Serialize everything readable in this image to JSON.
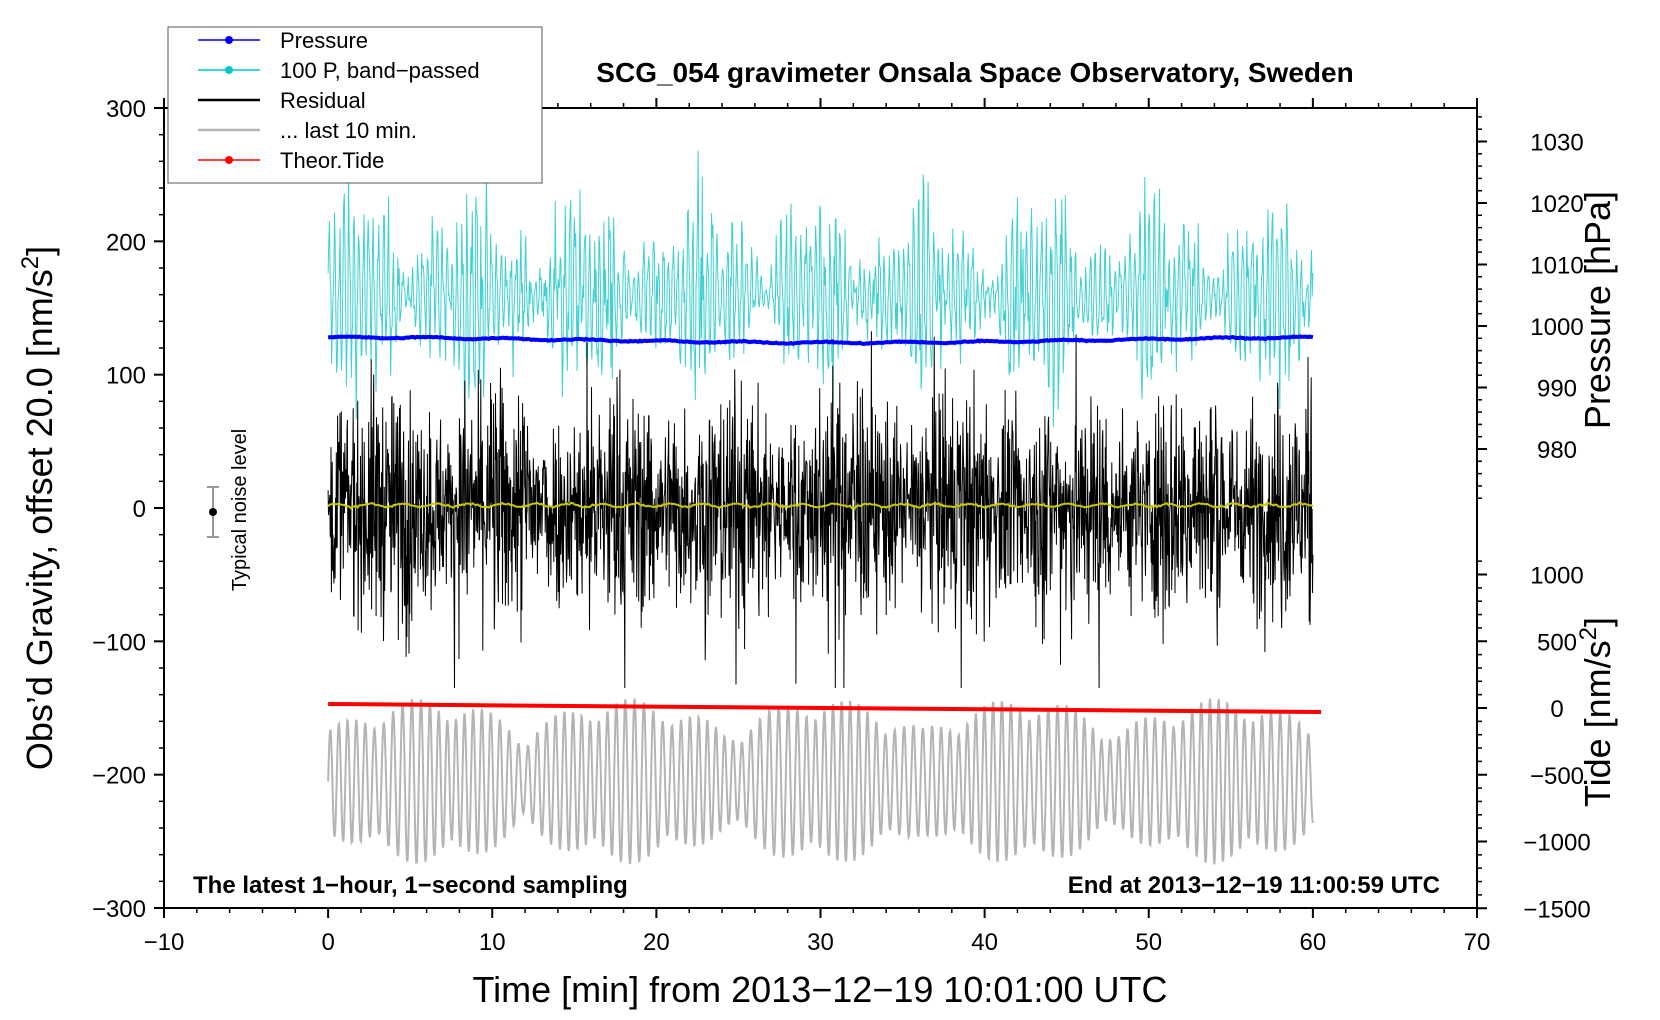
{
  "chart_data": {
    "type": "line",
    "title": "SCG_054 gravimeter Onsala Space Observatory, Sweden",
    "xlabel": "Time [min] from 2013−12−19 10:01:00 UTC",
    "ylabel": "Obs’d Gravity, offset 20.0 [nm/s",
    "ylabel_sup": "2",
    "ylabel_end": "]",
    "y2_pressure_label": "Pressure [hPa]",
    "y2_tide_label": "Tide [nm/s",
    "y2_tide_sup": "2",
    "y2_tide_end": "]",
    "xlim": [
      -10,
      70
    ],
    "ylim": [
      -300,
      300
    ],
    "x_ticks": [
      -10,
      0,
      10,
      20,
      30,
      40,
      50,
      60,
      70
    ],
    "x_tick_labels": [
      "−10",
      "0",
      "10",
      "20",
      "30",
      "40",
      "50",
      "60",
      "70"
    ],
    "y_ticks": [
      -300,
      -200,
      -100,
      0,
      100,
      200,
      300
    ],
    "y_tick_labels": [
      "−300",
      "−200",
      "−100",
      "0",
      "100",
      "200",
      "300"
    ],
    "pressure_ticks": [
      980,
      990,
      1000,
      1010,
      1020,
      1030
    ],
    "pressure_tick_labels": [
      "980",
      "990",
      "1000",
      "1010",
      "1020",
      "1030"
    ],
    "tide_ticks": [
      -1500,
      -1000,
      -500,
      0,
      500,
      1000
    ],
    "tide_tick_labels": [
      "−1500",
      "−1000",
      "−500",
      "0",
      "500",
      "1000"
    ],
    "legend": [
      {
        "label": "Pressure",
        "color": "#0000ff",
        "marker": true
      },
      {
        "label": "100 P, band−passed",
        "color": "#00c8c8",
        "marker": true
      },
      {
        "label": "Residual",
        "color": "#000000",
        "marker": false
      },
      {
        "label": "... last 10 min.",
        "color": "#b4b4b4",
        "marker": false
      },
      {
        "label": "Theor.Tide",
        "color": "#ff0000",
        "marker": true
      }
    ],
    "legend_position": "top-left",
    "series": [
      {
        "name": "Pressure",
        "color": "#0000ff",
        "x_range": [
          0,
          60
        ],
        "approx_gravity_level": 126
      },
      {
        "name": "100 P, band−passed",
        "color": "#40d0d0",
        "x_range": [
          0,
          60
        ],
        "center": 160,
        "amplitude": 55
      },
      {
        "name": "Residual",
        "color": "#000000",
        "x_range": [
          0,
          60
        ],
        "center": 0,
        "amplitude": 55
      },
      {
        "name": "Smoothed residual",
        "color": "#c8c800",
        "x_range": [
          0,
          60
        ],
        "center": 2
      },
      {
        "name": "... last 10 min.",
        "color": "#b4b4b4",
        "x_range": [
          0,
          60
        ],
        "center": -205,
        "amplitude": 50
      },
      {
        "name": "Theor.Tide",
        "color": "#ff0000",
        "x_range": [
          0,
          60.5
        ],
        "start": -147,
        "end": -153
      }
    ],
    "noise_bar": {
      "x": -7,
      "center": 0,
      "half_range": 20,
      "label": "Typical noise level"
    },
    "notes": {
      "bottom_left": "The latest 1−hour, 1−second sampling",
      "bottom_right": "End at 2013−12−19 11:00:59 UTC"
    },
    "colors": {
      "pressure": "#0000ff",
      "bandpassed": "#40d0d0",
      "residual": "#000000",
      "smoothed": "#c8c800",
      "last10": "#b4b4b4",
      "tide": "#ff0000"
    }
  }
}
